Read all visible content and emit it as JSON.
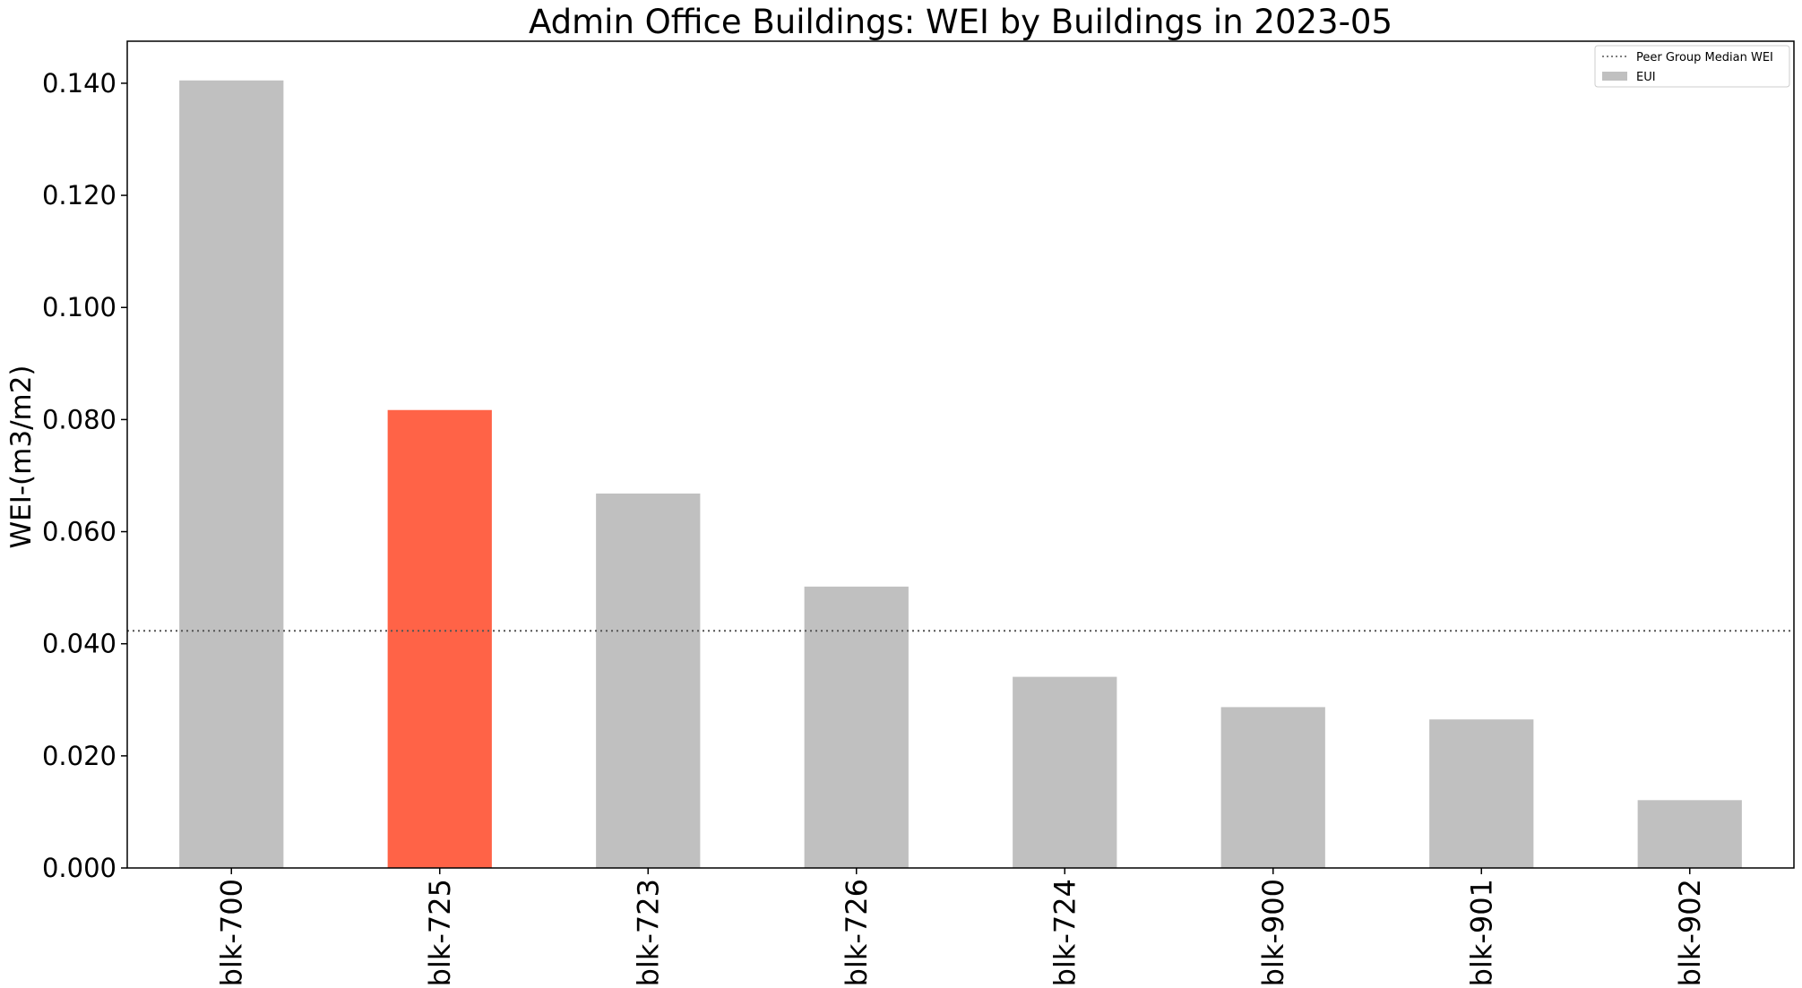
{
  "chart_data": {
    "type": "bar",
    "title": "Admin Office Buildings: WEI by Buildings in 2023-05",
    "xlabel": "",
    "ylabel": "WEI-(m3/m2)",
    "categories": [
      "blk-700",
      "blk-725",
      "blk-723",
      "blk-726",
      "blk-724",
      "blk-900",
      "blk-901",
      "blk-902"
    ],
    "values": [
      0.1405,
      0.0817,
      0.0668,
      0.0502,
      0.0341,
      0.0287,
      0.0265,
      0.0121
    ],
    "highlight_category": "blk-725",
    "colors": {
      "bar": "#c0c0c0",
      "highlight": "#ff6347",
      "median_line": "#555555"
    },
    "median": {
      "label": "Peer Group Median WEI",
      "value": 0.0423
    },
    "legend": {
      "placement": "top-right",
      "entries": [
        {
          "label": "Peer Group Median WEI",
          "kind": "dotted-line"
        },
        {
          "label": "EUI",
          "kind": "patch"
        }
      ]
    },
    "ylim": [
      0,
      0.1475
    ],
    "yticks": [
      0.0,
      0.02,
      0.04,
      0.06,
      0.08,
      0.1,
      0.12,
      0.14
    ],
    "ytick_labels": [
      "0.000",
      "0.020",
      "0.040",
      "0.060",
      "0.080",
      "0.100",
      "0.120",
      "0.140"
    ],
    "grid": false
  }
}
